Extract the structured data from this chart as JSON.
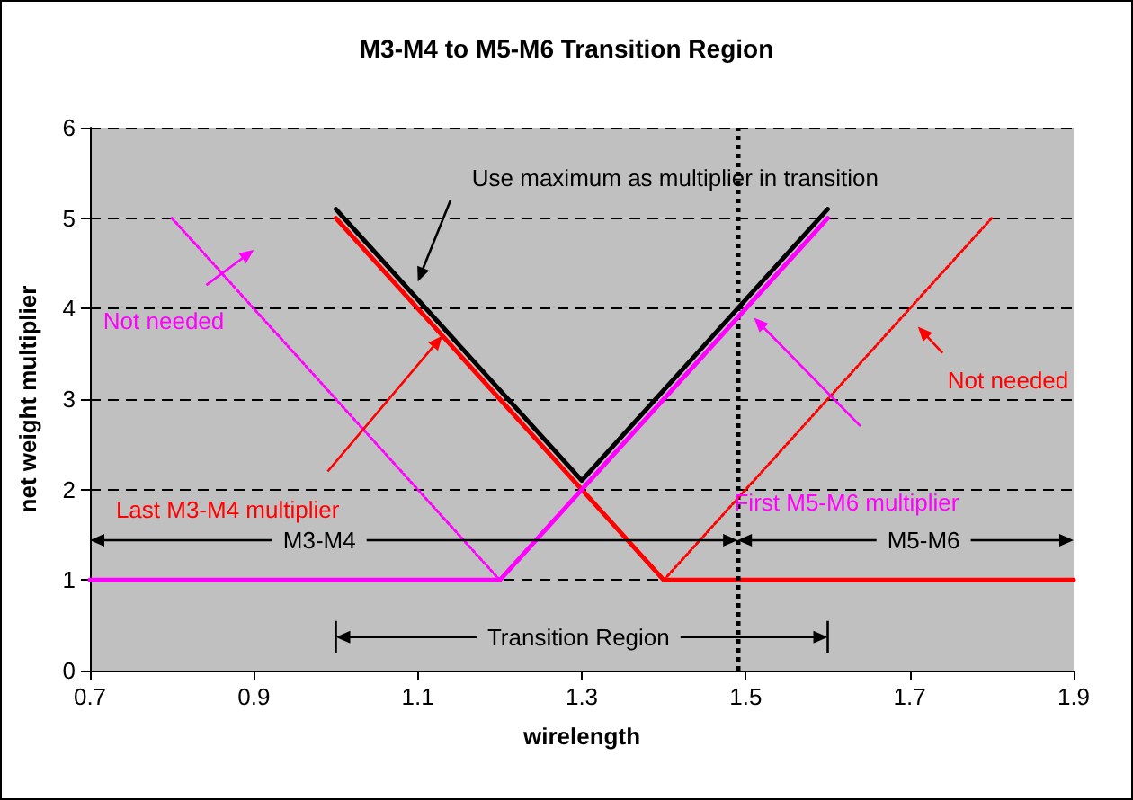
{
  "chart_data": {
    "type": "line",
    "title": "M3-M4 to M5-M6 Transition Region",
    "xlabel": "wirelength",
    "ylabel": "net weight multiplier",
    "xlim": [
      0.7,
      1.9
    ],
    "xticks": [
      0.7,
      0.9,
      1.1,
      1.3,
      1.5,
      1.7,
      1.9
    ],
    "ylim": [
      0,
      6
    ],
    "yticks": [
      0,
      1,
      2,
      3,
      4,
      5,
      6
    ],
    "grid": "y",
    "marker": "none",
    "series": [
      {
        "color": "#000000",
        "x": [
          1.0,
          1.3,
          1.6
        ],
        "values": [
          5.1,
          2.1,
          5.1
        ],
        "line_style": "solid"
      },
      {
        "color": "#ff0000",
        "x": [
          1.0,
          1.4,
          1.9
        ],
        "values": [
          5,
          1,
          1
        ],
        "line_style": "solid"
      },
      {
        "color": "#ff00ff",
        "x": [
          0.7,
          1.2,
          1.6
        ],
        "values": [
          1,
          1,
          5
        ],
        "line_style": "solid"
      },
      {
        "color": "#ff00ff",
        "x": [
          0.8,
          1.2
        ],
        "values": [
          5,
          1
        ],
        "line_style": "dotted"
      },
      {
        "color": "#ff0000",
        "x": [
          1.4,
          1.8
        ],
        "values": [
          1,
          5
        ],
        "line_style": "dotted"
      }
    ],
    "ref_lines": [
      {
        "axis": "x",
        "value": 1.49,
        "color": "#000000",
        "line_style": "dotted"
      }
    ],
    "annotations": [
      "Use maximum as multiplier in transition",
      "Last M3-M4 multiplier",
      "First M5-M6 multiplier",
      "Not needed",
      "Not needed",
      "M3-M4",
      "M5-M6",
      "Transition Region"
    ]
  }
}
